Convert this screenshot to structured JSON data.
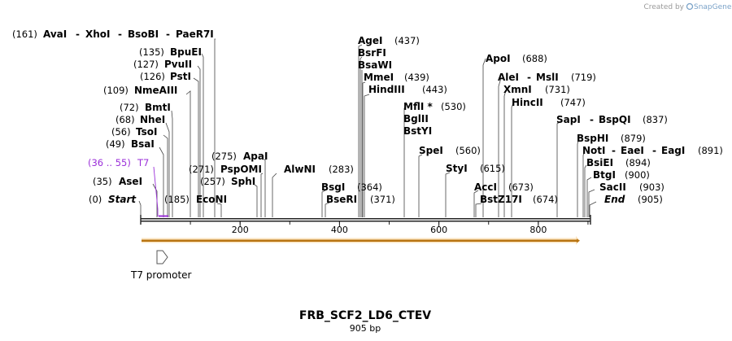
{
  "credit": {
    "prefix": "Created by",
    "brand": "SnapGene"
  },
  "sequence": {
    "name": "FRB_SCF2_LD6_CTEV",
    "length_label": "905 bp",
    "length": 905
  },
  "ruler": {
    "ticks": [
      200,
      400,
      600,
      800
    ]
  },
  "features": {
    "primer": {
      "range_label": "(36 .. 55)",
      "name": "T7",
      "color": "#9b30d9"
    },
    "arrow": {
      "color": "#f3b14a"
    },
    "promoter": {
      "label": "T7 promoter"
    }
  },
  "sites": {
    "start": {
      "pos": "(0)",
      "name": "Start"
    },
    "asei": {
      "pos": "(35)",
      "name": "AseI"
    },
    "bsai": {
      "pos": "(49)",
      "name": "BsaI"
    },
    "tsoi": {
      "pos": "(56)",
      "name": "TsoI"
    },
    "nhei": {
      "pos": "(68)",
      "name": "NheI"
    },
    "bmti": {
      "pos": "(72)",
      "name": "BmtI"
    },
    "nmeaiii": {
      "pos": "(109)",
      "name": "NmeAIII"
    },
    "psti": {
      "pos": "(126)",
      "name": "PstI"
    },
    "pvuii": {
      "pos": "(127)",
      "name": "PvuII"
    },
    "bpuei": {
      "pos": "(135)",
      "name": "BpuEI"
    },
    "avai": {
      "pos": "(161)",
      "names": [
        "AvaI",
        "XhoI",
        "BsoBI",
        "PaeR7I"
      ]
    },
    "econi": {
      "pos": "(185)",
      "name": "EcoNI"
    },
    "sphi": {
      "pos": "(257)",
      "name": "SphI"
    },
    "pspomi": {
      "pos": "(271)",
      "name": "PspOMI"
    },
    "apai": {
      "pos": "(275)",
      "name": "ApaI"
    },
    "alwni": {
      "pos": "(283)",
      "name": "AlwNI"
    },
    "bsgi": {
      "pos": "(364)",
      "name": "BsgI"
    },
    "bseri": {
      "pos": "(371)",
      "name": "BseRI"
    },
    "agei": {
      "pos": "(437)",
      "name": "AgeI"
    },
    "bsrfi": {
      "name": "BsrFI"
    },
    "bsawi": {
      "name": "BsaWI"
    },
    "mmei": {
      "pos": "(439)",
      "name": "MmeI"
    },
    "hindiii": {
      "pos": "(443)",
      "name": "HindIII"
    },
    "mlui": {
      "pos": "(530)",
      "name": "MflI *"
    },
    "bglii": {
      "name": "BglII"
    },
    "bstyi": {
      "name": "BstYI"
    },
    "spei": {
      "pos": "(560)",
      "name": "SpeI"
    },
    "styi": {
      "pos": "(615)",
      "name": "StyI"
    },
    "acci": {
      "pos": "(673)",
      "name": "AccI"
    },
    "bstz17i": {
      "pos": "(674)",
      "name": "BstZ17I"
    },
    "apoi": {
      "pos": "(688)",
      "name": "ApoI"
    },
    "alei": {
      "pos": "(719)",
      "names": [
        "AleI",
        "MslI"
      ]
    },
    "xmni": {
      "pos": "(731)",
      "name": "XmnI"
    },
    "hincii": {
      "pos": "(747)",
      "name": "HincII"
    },
    "sapi": {
      "pos": "(837)",
      "names": [
        "SapI",
        "BspQI"
      ]
    },
    "bsphi": {
      "pos": "(879)",
      "name": "BspHI"
    },
    "noti": {
      "pos": "(891)",
      "names": [
        "NotI",
        "EaeI",
        "EagI"
      ]
    },
    "bsiei": {
      "pos": "(894)",
      "name": "BsiEI"
    },
    "btgi": {
      "pos": "(900)",
      "name": "BtgI"
    },
    "sacii": {
      "pos": "(903)",
      "name": "SacII"
    },
    "end": {
      "pos": "(905)",
      "name": "End"
    }
  }
}
